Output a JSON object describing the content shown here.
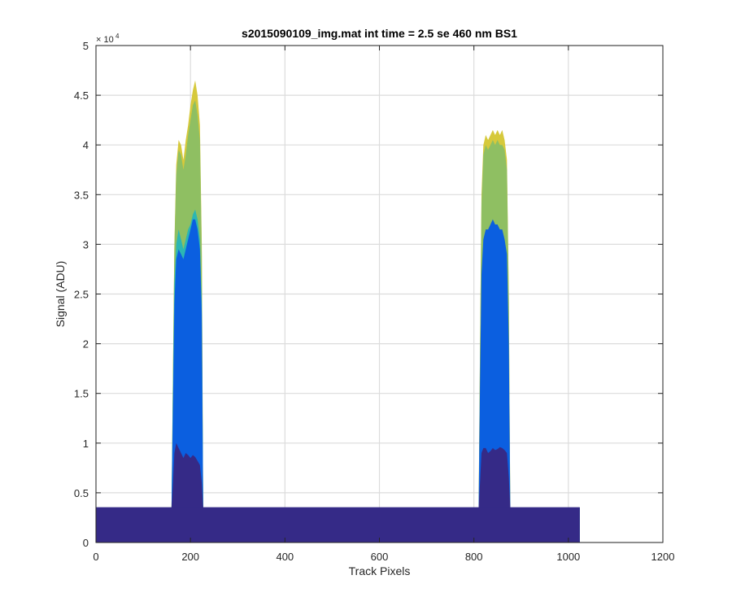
{
  "chart_data": {
    "type": "area",
    "title": "s2015090109_img.mat int time = 2.5 se  460 nm BS1",
    "xlabel": "Track Pixels",
    "ylabel": "Signal (ADU)",
    "xlim": [
      0,
      1200
    ],
    "ylim": [
      0,
      50000
    ],
    "x_ticks": [
      0,
      200,
      400,
      600,
      800,
      1000,
      1200
    ],
    "y_ticks": [
      0,
      5000,
      10000,
      15000,
      20000,
      25000,
      30000,
      35000,
      40000,
      45000,
      50000
    ],
    "y_tick_labels": [
      "0",
      "0.5",
      "1",
      "1.5",
      "2",
      "2.5",
      "3",
      "3.5",
      "4",
      "4.5",
      "5"
    ],
    "x_tick_labels": [
      "0",
      "200",
      "400",
      "600",
      "800",
      "1000",
      "1200"
    ],
    "y_exponent_label": "× 10",
    "y_exponent_power": "4",
    "grid": true,
    "baseline": 3500,
    "series": [
      {
        "color": "#d6c93c",
        "x": [
          0,
          160,
          163,
          166,
          170,
          175,
          180,
          185,
          190,
          195,
          200,
          205,
          210,
          215,
          220,
          224,
          227,
          1024
        ],
        "values": [
          3500,
          3500,
          18000,
          30000,
          38000,
          40500,
          40000,
          38500,
          40500,
          42000,
          44000,
          45500,
          46500,
          45000,
          42000,
          30000,
          3500,
          3500
        ]
      },
      {
        "color": "#8fbf62",
        "x": [
          0,
          160,
          163,
          166,
          170,
          175,
          180,
          185,
          190,
          195,
          200,
          205,
          210,
          215,
          220,
          224,
          227,
          1024
        ],
        "values": [
          3500,
          3500,
          17500,
          29500,
          37000,
          39500,
          39000,
          37500,
          39000,
          41000,
          42500,
          44000,
          44500,
          43000,
          40500,
          29000,
          3500,
          3500
        ]
      },
      {
        "color": "#2cb6b3",
        "x": [
          0,
          160,
          163,
          166,
          170,
          175,
          180,
          185,
          190,
          195,
          200,
          205,
          210,
          215,
          220,
          224,
          227,
          1024
        ],
        "values": [
          3500,
          3500,
          16000,
          26000,
          30000,
          31500,
          30500,
          29500,
          30500,
          31500,
          32000,
          33000,
          33500,
          32500,
          30500,
          24000,
          3500,
          3500
        ]
      },
      {
        "color": "#0b5fe0",
        "x": [
          0,
          160,
          163,
          166,
          170,
          175,
          180,
          185,
          190,
          195,
          200,
          205,
          210,
          215,
          220,
          224,
          227,
          1024
        ],
        "values": [
          3500,
          3500,
          14000,
          24000,
          28500,
          29500,
          29000,
          28500,
          29500,
          30500,
          31500,
          32500,
          32500,
          31500,
          29500,
          23000,
          3500,
          3500
        ]
      },
      {
        "color": "#352a87",
        "x": [
          0,
          160,
          163,
          166,
          170,
          175,
          180,
          185,
          190,
          195,
          200,
          205,
          210,
          215,
          220,
          224,
          227,
          1024
        ],
        "values": [
          3500,
          3500,
          6000,
          9000,
          10000,
          9500,
          9000,
          8500,
          9000,
          8800,
          8500,
          8800,
          8600,
          8200,
          7800,
          6000,
          3500,
          3500
        ]
      },
      {
        "color": "#d6c93c",
        "x": [
          0,
          810,
          813,
          816,
          820,
          825,
          830,
          835,
          840,
          845,
          850,
          855,
          860,
          865,
          870,
          874,
          877,
          1024
        ],
        "values": [
          3500,
          3500,
          20000,
          35000,
          40000,
          41000,
          40500,
          41000,
          41500,
          41000,
          41500,
          41000,
          41500,
          40500,
          38500,
          25000,
          3500,
          3500
        ]
      },
      {
        "color": "#8fbf62",
        "x": [
          0,
          810,
          813,
          816,
          820,
          825,
          830,
          835,
          840,
          845,
          850,
          855,
          860,
          865,
          870,
          874,
          877,
          1024
        ],
        "values": [
          3500,
          3500,
          19500,
          34000,
          39000,
          40000,
          39500,
          40000,
          40500,
          40000,
          40500,
          40000,
          40000,
          39500,
          37500,
          24500,
          3500,
          3500
        ]
      },
      {
        "color": "#0b5fe0",
        "x": [
          0,
          810,
          813,
          816,
          820,
          825,
          830,
          835,
          840,
          845,
          850,
          855,
          860,
          865,
          870,
          874,
          877,
          1024
        ],
        "values": [
          3500,
          3500,
          16000,
          27000,
          30500,
          31500,
          31500,
          32000,
          32500,
          32000,
          32000,
          31500,
          31500,
          30500,
          29000,
          20000,
          3500,
          3500
        ]
      },
      {
        "color": "#352a87",
        "x": [
          0,
          810,
          813,
          816,
          820,
          825,
          830,
          835,
          840,
          845,
          850,
          855,
          860,
          865,
          870,
          874,
          877,
          1024
        ],
        "values": [
          3500,
          3500,
          6000,
          9000,
          9500,
          9500,
          9000,
          9200,
          9500,
          9300,
          9400,
          9600,
          9500,
          9300,
          9000,
          6500,
          3500,
          3500
        ]
      }
    ]
  }
}
